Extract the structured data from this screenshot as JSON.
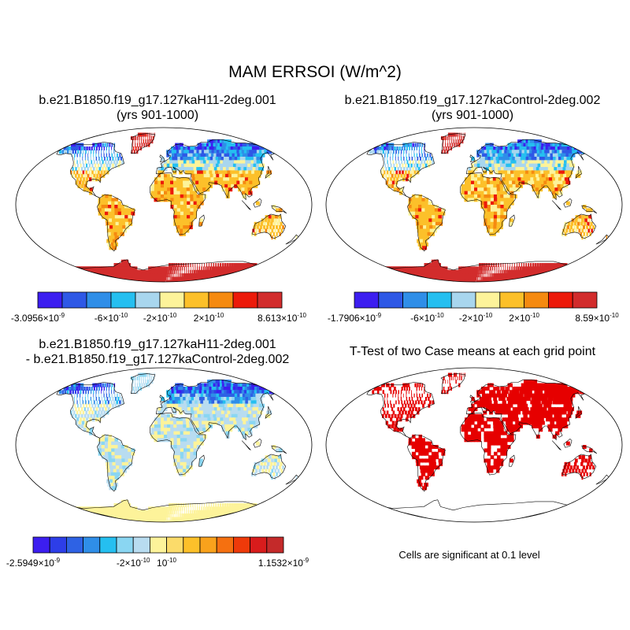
{
  "main_title": "MAM ERRSOI (W/m^2)",
  "panels": {
    "top_left": {
      "title_line1": "b.e21.B1850.f19_g17.127kaH11-2deg.001",
      "title_line2": "(yrs 901-1000)",
      "scheme": "diverging10",
      "colorbar": {
        "colors": [
          "#3c1ef0",
          "#2e58e6",
          "#2f8ee8",
          "#25bff0",
          "#a8d6ee",
          "#fdf39a",
          "#fcc02a",
          "#f58a10",
          "#ec1a0a",
          "#d22c2c"
        ],
        "labels": [
          "-3.0956×10",
          "-6×10",
          "-2×10",
          "2×10",
          "8.613×10"
        ],
        "label_exps": [
          "-9",
          "-10",
          "-10",
          "-10",
          "-10"
        ]
      }
    },
    "top_right": {
      "title_line1": "b.e21.B1850.f19_g17.127kaControl-2deg.002",
      "title_line2": "(yrs 901-1000)",
      "scheme": "diverging10",
      "colorbar": {
        "colors": [
          "#3c1ef0",
          "#2e58e6",
          "#2f8ee8",
          "#25bff0",
          "#a8d6ee",
          "#fdf39a",
          "#fcc02a",
          "#f58a10",
          "#ec1a0a",
          "#d22c2c"
        ],
        "labels": [
          "-1.7906×10",
          "-6×10",
          "-2×10",
          "2×10",
          "8.59×10"
        ],
        "label_exps": [
          "-9",
          "-10",
          "-10",
          "-10",
          "-10"
        ]
      }
    },
    "bottom_left": {
      "title_line1": "b.e21.B1850.f19_g17.127kaH11-2deg.001",
      "title_line2": "- b.e21.B1850.f19_g17.127kaControl-2deg.002",
      "scheme": "difference",
      "colorbar": {
        "colors": [
          "#3c1ef0",
          "#2d3ee8",
          "#2e62e4",
          "#2f8ee8",
          "#25bff0",
          "#8ad6f2",
          "#b8dcf0",
          "#fdf39a",
          "#fbdb6a",
          "#fcc02a",
          "#f9a21c",
          "#f57010",
          "#ee3a0a",
          "#d81c1c",
          "#c42a2a"
        ],
        "labels": [
          "-2.5949×10",
          "-2×10",
          "10",
          "1.1532×10"
        ],
        "label_exps": [
          "-9",
          "-10",
          "-10",
          "-9"
        ]
      }
    },
    "bottom_right": {
      "title": "T-Test of two Case means at each grid point",
      "scheme": "significance",
      "significance_color": "#e60000",
      "note": "Cells are significant at 0.1 level"
    }
  }
}
